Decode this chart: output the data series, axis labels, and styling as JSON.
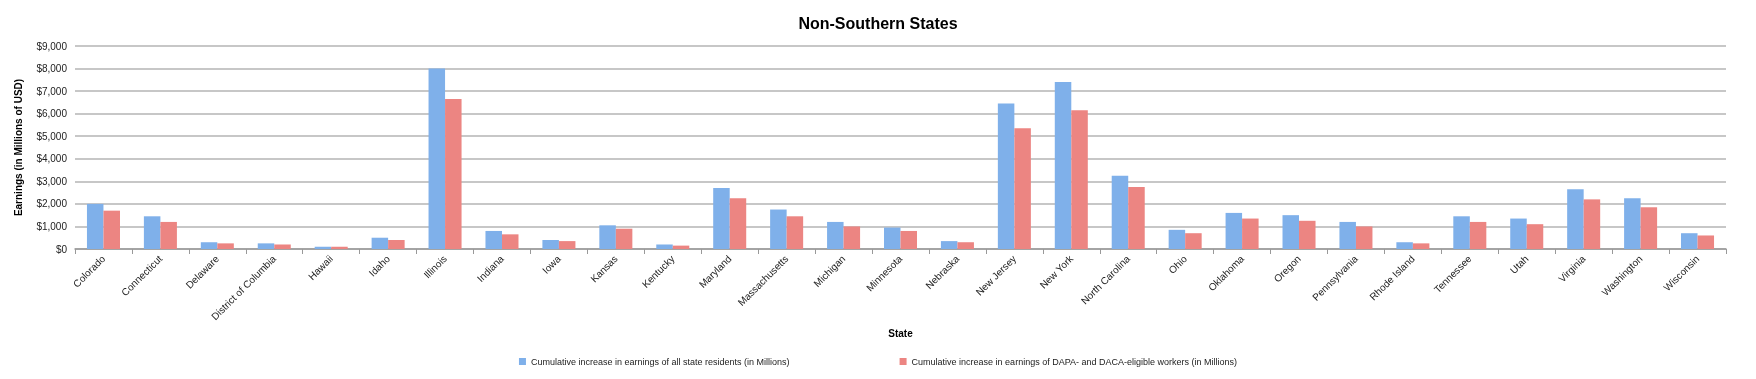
{
  "chart_data": {
    "type": "bar",
    "title": "Non-Southern States",
    "xlabel": "State",
    "ylabel": "Earnings (in Millions of USD)",
    "categories": [
      "Colorado",
      "Connecticut",
      "Delaware",
      "District of Columbia",
      "Hawaii",
      "Idaho",
      "Illinois",
      "Indiana",
      "Iowa",
      "Kansas",
      "Kentucky",
      "Maryland",
      "Massachusetts",
      "Michigan",
      "Minnesota",
      "Nebraska",
      "New Jersey",
      "New York",
      "North Carolina",
      "Ohio",
      "Oklahoma",
      "Oregon",
      "Pennsylvania",
      "Rhode Island",
      "Tennessee",
      "Utah",
      "Virginia",
      "Washington",
      "Wisconsin"
    ],
    "series": [
      {
        "name": "Cumulative increase in earnings of all state residents (in Millions)",
        "color": "#7fb0ea",
        "values": [
          2000,
          1450,
          300,
          250,
          100,
          500,
          8000,
          800,
          400,
          1050,
          200,
          2700,
          1750,
          1200,
          950,
          350,
          6450,
          7400,
          3250,
          850,
          1600,
          1500,
          1200,
          300,
          1450,
          1350,
          2650,
          2250,
          700
        ]
      },
      {
        "name": "Cumulative increase in earnings of DAPA- and DACA-eligible workers (in Millions)",
        "color": "#ec8582",
        "values": [
          1700,
          1200,
          250,
          200,
          100,
          400,
          6650,
          650,
          350,
          900,
          150,
          2250,
          1450,
          1000,
          800,
          300,
          5350,
          6150,
          2750,
          700,
          1350,
          1250,
          1000,
          250,
          1200,
          1100,
          2200,
          1850,
          600
        ]
      }
    ],
    "ylim": [
      0,
      9000
    ],
    "yticks": [
      {
        "value": 0,
        "label": "$0"
      },
      {
        "value": 1000,
        "label": "$1,000"
      },
      {
        "value": 2000,
        "label": "$2,000"
      },
      {
        "value": 3000,
        "label": "$3,000"
      },
      {
        "value": 4000,
        "label": "$4,000"
      },
      {
        "value": 5000,
        "label": "$5,000"
      },
      {
        "value": 6000,
        "label": "$6,000"
      },
      {
        "value": 7000,
        "label": "$7,000"
      },
      {
        "value": 8000,
        "label": "$8,000"
      },
      {
        "value": 9000,
        "label": "$9,000"
      }
    ],
    "grid": "y",
    "legend": "bottom"
  }
}
